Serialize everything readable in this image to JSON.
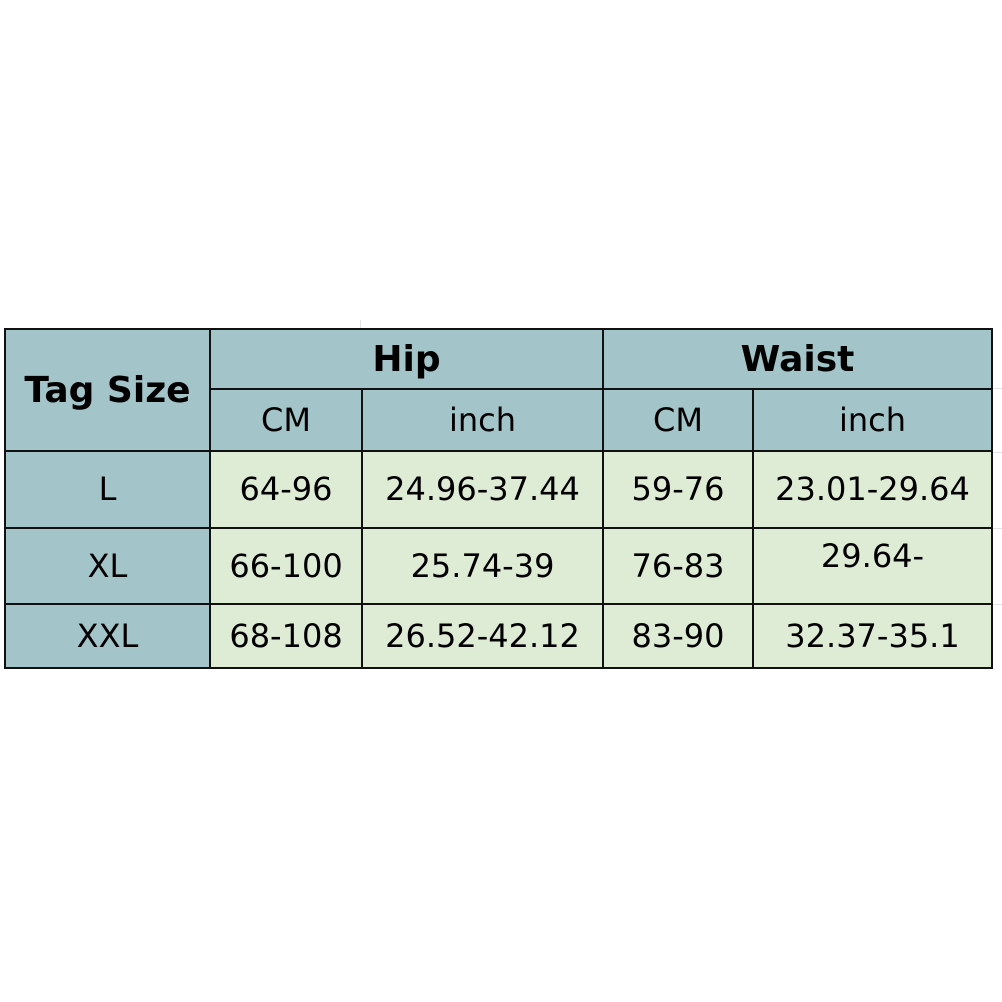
{
  "colors": {
    "header_bg": "#a3c4c9",
    "data_bg": "#deebd5",
    "border": "#111111"
  },
  "table": {
    "corner": "Tag Size",
    "groups": [
      "Hip",
      "Waist"
    ],
    "subheaders": [
      "CM",
      "inch",
      "CM",
      "inch"
    ],
    "rows": [
      {
        "size": "L",
        "cells": [
          "64-96",
          "24.96-37.44",
          "59-76",
          "23.01-29.64"
        ]
      },
      {
        "size": "XL",
        "cells": [
          "66-100",
          "25.74-39",
          "76-83",
          "29.64-"
        ]
      },
      {
        "size": "XXL",
        "cells": [
          "68-108",
          "26.52-42.12",
          "83-90",
          "32.37-35.1"
        ]
      }
    ]
  }
}
